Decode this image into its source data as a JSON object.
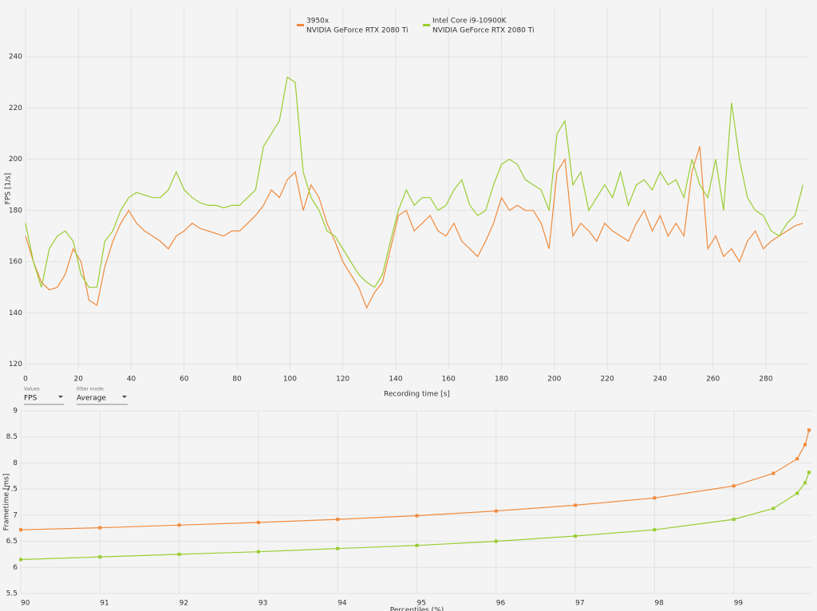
{
  "chart_data": [
    {
      "type": "line",
      "ylabel": "FPS [1/s]",
      "xlabel": "Recording time [s]",
      "x": [
        0,
        3,
        6,
        9,
        12,
        15,
        18,
        21,
        24,
        27,
        30,
        33,
        36,
        39,
        42,
        45,
        48,
        51,
        54,
        57,
        60,
        63,
        66,
        69,
        72,
        75,
        78,
        81,
        84,
        87,
        90,
        93,
        96,
        99,
        102,
        105,
        108,
        111,
        114,
        117,
        120,
        123,
        126,
        129,
        132,
        135,
        138,
        141,
        144,
        147,
        150,
        153,
        156,
        159,
        162,
        165,
        168,
        171,
        174,
        177,
        180,
        183,
        186,
        189,
        192,
        195,
        198,
        201,
        204,
        207,
        210,
        213,
        216,
        219,
        222,
        225,
        228,
        231,
        234,
        237,
        240,
        243,
        246,
        249,
        252,
        255,
        258,
        261,
        264,
        267,
        270,
        273,
        276,
        279,
        282,
        285,
        288,
        291,
        294
      ],
      "series": [
        {
          "name": "3950x",
          "gpu": "NVIDIA GeForce RTX 2080 Ti",
          "color": "#f08a3c",
          "values": [
            170,
            160,
            152,
            149,
            150,
            155,
            165,
            160,
            145,
            143,
            158,
            168,
            175,
            180,
            175,
            172,
            170,
            168,
            165,
            170,
            172,
            175,
            173,
            172,
            171,
            170,
            172,
            172,
            175,
            178,
            182,
            188,
            185,
            192,
            195,
            180,
            190,
            185,
            175,
            168,
            160,
            155,
            150,
            142,
            148,
            152,
            165,
            178,
            180,
            172,
            175,
            178,
            172,
            170,
            175,
            168,
            165,
            162,
            168,
            175,
            185,
            180,
            182,
            180,
            180,
            175,
            165,
            195,
            200,
            170,
            175,
            172,
            168,
            175,
            172,
            170,
            168,
            175,
            180,
            172,
            178,
            170,
            175,
            170,
            195,
            205,
            165,
            170,
            162,
            165,
            160,
            168,
            172,
            165,
            168,
            170,
            172,
            174,
            175
          ]
        },
        {
          "name": "Intel Core i9-10900K",
          "gpu": "NVIDIA GeForce RTX 2080 Ti",
          "color": "#9acd32",
          "values": [
            175,
            160,
            150,
            165,
            170,
            172,
            168,
            155,
            150,
            150,
            168,
            172,
            180,
            185,
            187,
            186,
            185,
            185,
            188,
            195,
            188,
            185,
            183,
            182,
            182,
            181,
            182,
            182,
            185,
            188,
            205,
            210,
            215,
            232,
            230,
            195,
            185,
            180,
            172,
            170,
            165,
            160,
            155,
            152,
            150,
            155,
            168,
            180,
            188,
            182,
            185,
            185,
            180,
            182,
            188,
            192,
            182,
            178,
            180,
            190,
            198,
            200,
            198,
            192,
            190,
            188,
            180,
            210,
            215,
            190,
            195,
            180,
            185,
            190,
            185,
            195,
            182,
            190,
            192,
            188,
            195,
            190,
            192,
            185,
            200,
            190,
            185,
            200,
            180,
            222,
            200,
            185,
            180,
            178,
            172,
            170,
            175,
            178,
            190
          ]
        }
      ],
      "xlim": [
        0,
        296
      ],
      "ylim": [
        118,
        259
      ],
      "xticks": [
        0,
        20,
        40,
        60,
        80,
        100,
        120,
        140,
        160,
        180,
        200,
        220,
        240,
        260,
        280
      ],
      "yticks": [
        120,
        140,
        160,
        180,
        200,
        220,
        240
      ],
      "grid": true,
      "markers": false
    },
    {
      "type": "line",
      "ylabel": "Frametime [ms]",
      "xlabel": "Percentiles (%)",
      "x": [
        90,
        91,
        92,
        93,
        94,
        95,
        96,
        97,
        98,
        99,
        99.5,
        99.8,
        99.9,
        99.95
      ],
      "series": [
        {
          "name": "3950x",
          "color": "#f08a3c",
          "values": [
            6.72,
            6.76,
            6.81,
            6.86,
            6.92,
            6.99,
            7.08,
            7.19,
            7.33,
            7.56,
            7.8,
            8.08,
            8.35,
            8.63
          ]
        },
        {
          "name": "Intel Core i9-10900K",
          "color": "#9acd32",
          "values": [
            6.15,
            6.2,
            6.25,
            6.3,
            6.36,
            6.42,
            6.5,
            6.6,
            6.72,
            6.92,
            7.13,
            7.42,
            7.62,
            7.82
          ]
        }
      ],
      "xlim": [
        90,
        100
      ],
      "ylim": [
        5.5,
        9
      ],
      "xticks": [
        90,
        91,
        92,
        93,
        94,
        95,
        96,
        97,
        98,
        99
      ],
      "yticks": [
        5.5,
        6,
        6.5,
        7,
        7.5,
        8,
        8.5,
        9
      ],
      "grid": true,
      "markers": true
    }
  ],
  "controls": {
    "values_label": "Values",
    "values_choice": "FPS",
    "filter_label": "Filter mode",
    "filter_choice": "Average"
  }
}
